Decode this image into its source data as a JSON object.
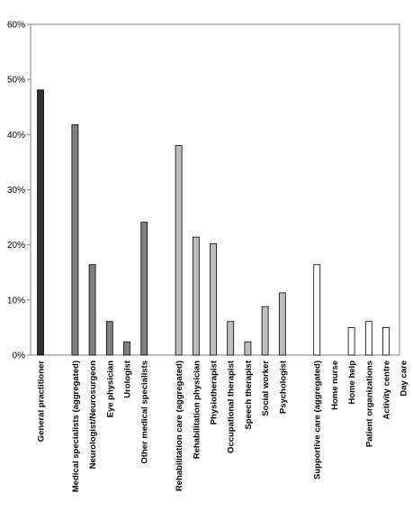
{
  "chart_data": {
    "type": "bar",
    "title": "",
    "xlabel": "",
    "ylabel": "",
    "ylim": [
      0,
      60
    ],
    "yticks": [
      0,
      10,
      20,
      30,
      40,
      50,
      60
    ],
    "ytick_labels": [
      "0%",
      "10%",
      "20%",
      "30%",
      "40%",
      "50%",
      "60%"
    ],
    "grid": false,
    "legend": "none",
    "categories": [
      "General practitioner",
      "Medical specialists (aggregated)",
      "Neurologist/Neurosurgeon",
      "Eye physician",
      "Urologist",
      "Other medical specialists",
      "Rehabilitation care (aggregated)",
      "Rehabilitation physician",
      "Physiotherapist",
      "Occupational therapist",
      "Speech therapist",
      "Social worker",
      "Psychologist",
      "Supportive care (aggregated)",
      "Home nurse",
      "Home help",
      "Patient organizations",
      "Activity centre",
      "Day care"
    ],
    "values": [
      48.1,
      41.8,
      16.4,
      6.1,
      2.4,
      24.1,
      38.0,
      21.4,
      20.2,
      6.1,
      2.4,
      8.8,
      11.3,
      16.4,
      0,
      5.0,
      6.1,
      5.0,
      0
    ],
    "group_index": [
      0,
      1,
      1,
      1,
      1,
      1,
      2,
      2,
      2,
      2,
      2,
      2,
      2,
      3,
      3,
      3,
      3,
      3,
      3
    ],
    "colors": {
      "group_fills": [
        "#333333",
        "#808080",
        "#bfbfbf",
        "#ffffff"
      ],
      "bar_stroke": "#000000",
      "axis": "#808080",
      "plot_border": "#808080"
    }
  }
}
